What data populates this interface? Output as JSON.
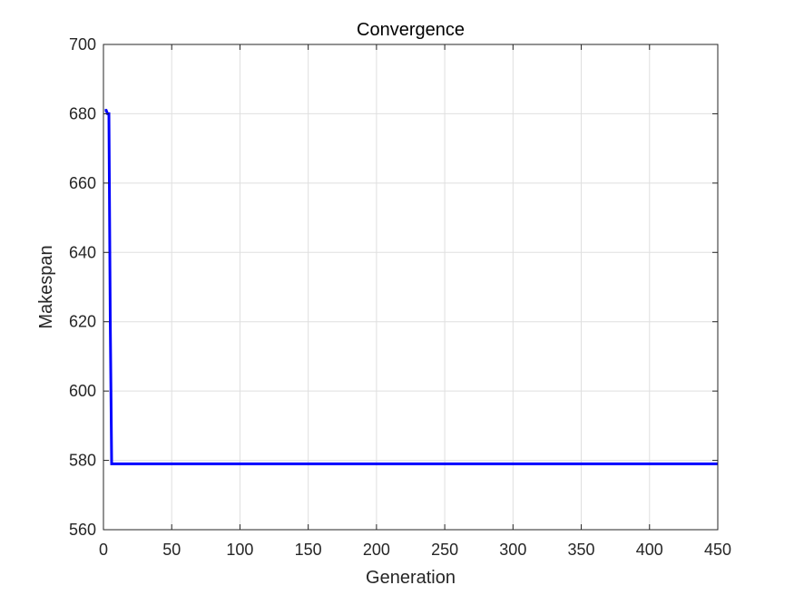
{
  "chart_data": {
    "type": "line",
    "title": "Convergence",
    "xlabel": "Generation",
    "ylabel": "Makespan",
    "xlim": [
      0,
      450
    ],
    "ylim": [
      560,
      700
    ],
    "xticks": [
      0,
      50,
      100,
      150,
      200,
      250,
      300,
      350,
      400,
      450
    ],
    "yticks": [
      560,
      580,
      600,
      620,
      640,
      660,
      680,
      700
    ],
    "grid": true,
    "series": [
      {
        "color": "#0000ff",
        "x": [
          1,
          2,
          3,
          4,
          5,
          6,
          450
        ],
        "y": [
          681,
          681,
          680,
          680,
          620,
          579,
          579
        ]
      }
    ]
  }
}
